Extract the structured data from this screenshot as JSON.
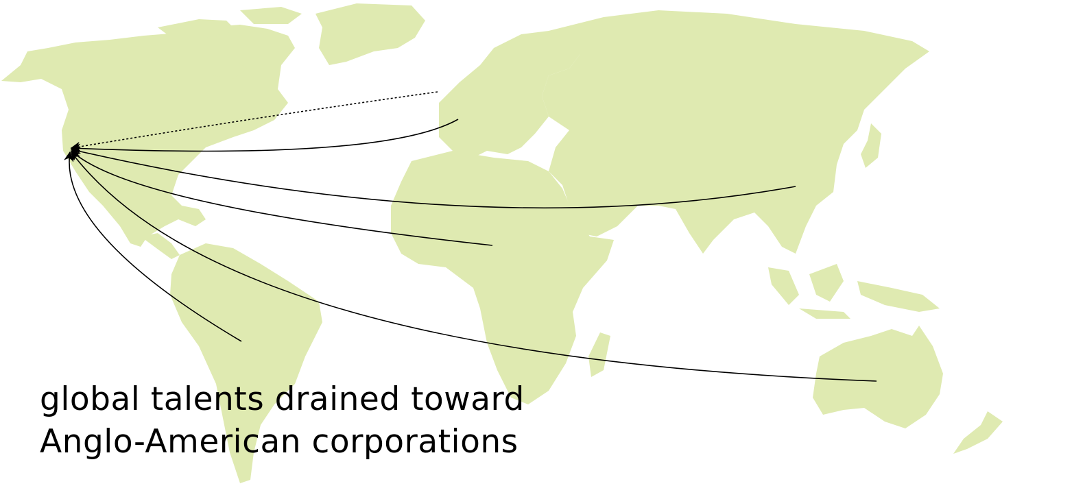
{
  "caption": {
    "line1": "global talents drained toward",
    "line2": "Anglo-American corporations"
  },
  "colors": {
    "land": "#dfeab1",
    "arrow": "#000000",
    "text": "#000000",
    "background": "#ffffff"
  },
  "map": {
    "type": "world map",
    "destination": "North America (west coast)",
    "flows": [
      {
        "from": "Western Europe",
        "style": "dotted"
      },
      {
        "from": "Europe",
        "style": "solid"
      },
      {
        "from": "East Asia",
        "style": "solid"
      },
      {
        "from": "Africa",
        "style": "solid"
      },
      {
        "from": "South America",
        "style": "solid"
      },
      {
        "from": "Australia",
        "style": "solid"
      }
    ]
  }
}
